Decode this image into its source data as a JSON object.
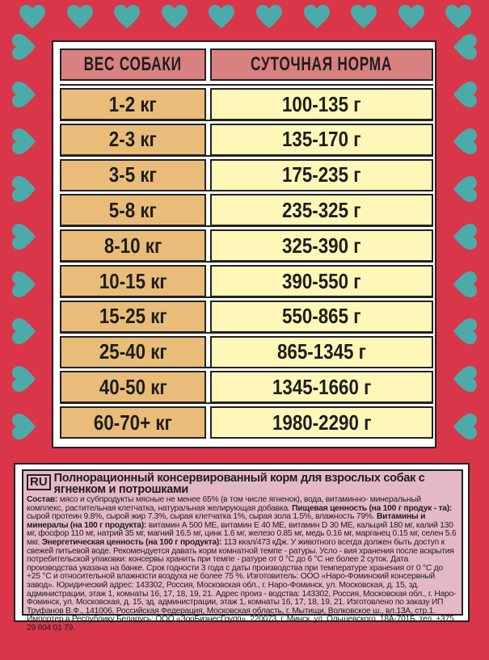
{
  "colors": {
    "background": "#d9364a",
    "heart": "#4aaba8",
    "header": "#d98080",
    "weight_cell": "#e9bd79",
    "norm_cell": "#fff7b8",
    "label": "#e4b9c6"
  },
  "decor_icon": "heart-icon",
  "table": {
    "headers": [
      "ВЕС СОБАКИ",
      "СУТОЧНАЯ НОРМА"
    ],
    "rows": [
      [
        "1-2 кг",
        "100-135 г"
      ],
      [
        "2-3 кг",
        "135-170 г"
      ],
      [
        "3-5 кг",
        "175-235 г"
      ],
      [
        "5-8 кг",
        "235-325 г"
      ],
      [
        "8-10 кг",
        "325-390 г"
      ],
      [
        "10-15 кг",
        "390-550 г"
      ],
      [
        "15-25 кг",
        "550-865 г"
      ],
      [
        "25-40 кг",
        "865-1345 г"
      ],
      [
        "40-50 кг",
        "1345-1660 г"
      ],
      [
        "60-70+ кг",
        "1980-2290 г"
      ]
    ]
  },
  "label": {
    "lang": "RU",
    "title": "Полнорационный консервированный корм для взрослых собак с ягненком и потрошками",
    "segments": [
      {
        "b": true,
        "t": "Состав:"
      },
      {
        "b": false,
        "t": " мясо и субпродукты мясные не менее 65% (в том числе ягненок), вода, витаминно- минеральный комплекс, растительная клетчатка, натуральная желирующая добавка. "
      },
      {
        "b": true,
        "t": "Пищевая ценность (на 100 г продук - та):"
      },
      {
        "b": false,
        "t": " сырой протеин 9.8%, сырой жир 7.3%, сырая клетчатка 1%, сырая зола 1.5%, влажность 79%. "
      },
      {
        "b": true,
        "t": "Витамины и минералы (на 100 г продукта):"
      },
      {
        "b": false,
        "t": " витамин А 500 МЕ, витамин Е 40 МЕ, витамин D 30 МЕ, кальций 180 мг, калий 130 мг, фосфор 110 мг, натрий 35 мг, магний 16.5 мг, цинк 1.6 мг, железо 0.85 мг, медь 0.16 мг, марганец 0.15 мг, селен 5.6 мкг. "
      },
      {
        "b": true,
        "t": "Энергетическая ценность (на 100 г продукта):"
      },
      {
        "b": false,
        "t": " 113 ккал/473 кДж. У животного всегда должен быть доступ к свежей питьевой воде. Рекомендуется давать корм комнатной темпе - ратуры. Усло - вия хранения после вскрытия потребительской упаковки: консервы хранить при темпе - ратуре от 0 °С до 6 °С не более 2 суток.  Дата производства указана на банке. Срок годности 3 года с даты производства при температуре хранения от 0 °С до +25 °С и относительной влажности воздуха не более 75 %.  Изготовитель: ООО «Наро-Фоминский консервный завод». Юридический адрес: 143302, Россия, Московская обл., г. Наро-Фоминск, ул. Московская, д. 15, зд. администрации, этаж 1, комнаты 16, 17, 18, 19, 21. Адрес произ - водства: 143302, Россия, Московская обл., г. Наро-Фоминск, ул. Московская,  д. 15, зд. администрации, этаж 1, комнаты 16, 17, 18, 19, 21. Изготовлено по заказу ИП Труфанов В.Ф., 141006, Российская Федерация, Московская область, г. Мытищи, Волковское ш., вл.13А, стр.1. Импортер в Республику Беларусь: ООО «ЗооБизнесГрупп», 220073, г. Минск, ул. Ольшевского, 18А-701Б, тел. +375 29 604 01 79."
      }
    ]
  }
}
